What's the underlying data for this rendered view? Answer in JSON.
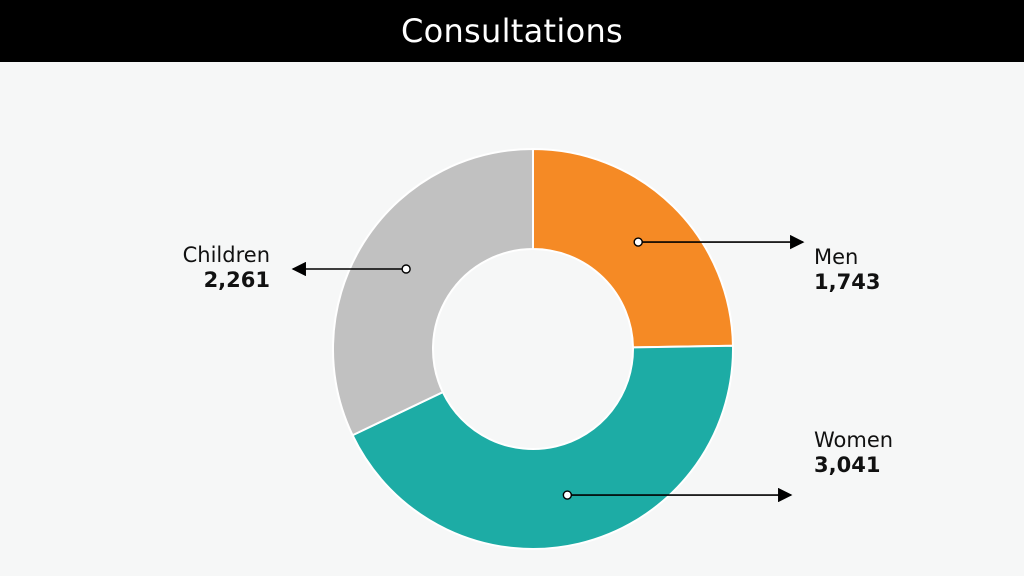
{
  "title": "Consultations",
  "chart_data": {
    "type": "pie",
    "title": "Consultations",
    "donut": true,
    "slices": [
      {
        "label": "Men",
        "value": 1743,
        "display": "1,743",
        "color": "#f58a25"
      },
      {
        "label": "Women",
        "value": 3041,
        "display": "3,041",
        "color": "#1daca5"
      },
      {
        "label": "Children",
        "value": 2261,
        "display": "2,261",
        "color": "#c1c1c1"
      }
    ],
    "start_angle": "12 o'clock",
    "direction": "clockwise"
  }
}
